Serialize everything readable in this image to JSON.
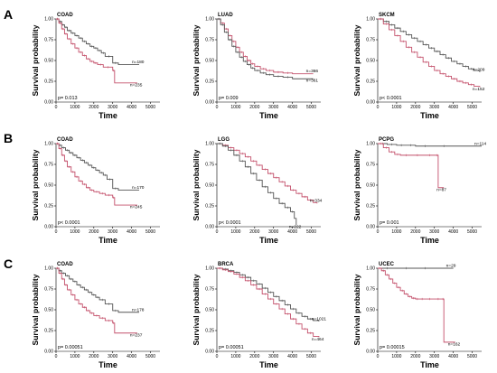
{
  "panel_letters": [
    "A",
    "B",
    "C"
  ],
  "chart_data": [
    {
      "type": "line",
      "row": 0,
      "col": 0,
      "title": "COAD",
      "xlabel": "Time",
      "ylabel": "Survival probability",
      "xlim": [
        0,
        5500
      ],
      "ylim": [
        0,
        1
      ],
      "xticks": [
        "0",
        "1000",
        "2000",
        "3000",
        "4000",
        "5000"
      ],
      "yticks": [
        "0.00",
        "0.25",
        "0.50",
        "0.75",
        "1.00"
      ],
      "p_value": "p= 0.013",
      "series": [
        {
          "name": "n=180",
          "color": "#555555",
          "x": [
            0,
            150,
            300,
            450,
            600,
            800,
            1000,
            1200,
            1400,
            1600,
            1800,
            2000,
            2200,
            2400,
            2600,
            3000,
            3300,
            4400
          ],
          "y": [
            1.0,
            0.97,
            0.93,
            0.9,
            0.86,
            0.83,
            0.8,
            0.77,
            0.73,
            0.7,
            0.67,
            0.65,
            0.62,
            0.59,
            0.55,
            0.47,
            0.45,
            0.45
          ]
        },
        {
          "name": "n=235",
          "color": "#c4506b",
          "x": [
            0,
            150,
            300,
            450,
            600,
            800,
            1000,
            1200,
            1400,
            1600,
            1800,
            2000,
            2200,
            2500,
            3000,
            3100,
            4300
          ],
          "y": [
            1.0,
            0.95,
            0.88,
            0.82,
            0.76,
            0.7,
            0.65,
            0.6,
            0.56,
            0.52,
            0.49,
            0.47,
            0.45,
            0.42,
            0.38,
            0.23,
            0.23
          ]
        }
      ]
    },
    {
      "type": "line",
      "row": 0,
      "col": 1,
      "title": "LUAD",
      "xlabel": "Time",
      "ylabel": "Survival probability",
      "xlim": [
        0,
        5500
      ],
      "ylim": [
        0,
        1
      ],
      "xticks": [
        "0",
        "1000",
        "2000",
        "3000",
        "4000",
        "5000"
      ],
      "yticks": [
        "0.00",
        "0.25",
        "0.50",
        "0.75",
        "1.00"
      ],
      "p_value": "p= 0.009",
      "series": [
        {
          "name": "n=366",
          "color": "#c4506b",
          "x": [
            0,
            200,
            400,
            600,
            800,
            1000,
            1200,
            1400,
            1600,
            1800,
            2000,
            2300,
            2600,
            3000,
            3500,
            4000,
            5100
          ],
          "y": [
            1.0,
            0.95,
            0.88,
            0.8,
            0.73,
            0.66,
            0.6,
            0.55,
            0.5,
            0.46,
            0.43,
            0.4,
            0.38,
            0.36,
            0.35,
            0.34,
            0.34
          ]
        },
        {
          "name": "n=361",
          "color": "#555555",
          "x": [
            0,
            200,
            400,
            600,
            800,
            1000,
            1200,
            1400,
            1600,
            1800,
            2000,
            2300,
            2600,
            3000,
            3500,
            4000,
            5100
          ],
          "y": [
            1.0,
            0.93,
            0.84,
            0.75,
            0.67,
            0.6,
            0.54,
            0.49,
            0.45,
            0.41,
            0.38,
            0.35,
            0.33,
            0.31,
            0.3,
            0.28,
            0.28
          ]
        }
      ]
    },
    {
      "type": "line",
      "row": 0,
      "col": 2,
      "title": "SKCM",
      "xlabel": "Time",
      "ylabel": "Survival probability",
      "xlim": [
        0,
        5500
      ],
      "ylim": [
        0,
        1
      ],
      "xticks": [
        "0",
        "1000",
        "2000",
        "3000",
        "4000",
        "5000"
      ],
      "yticks": [
        "0.00",
        "0.25",
        "0.50",
        "0.75",
        "1.00"
      ],
      "p_value": "p< 0.0001",
      "series": [
        {
          "name": "n=209",
          "color": "#555555",
          "x": [
            0,
            300,
            600,
            900,
            1200,
            1500,
            1800,
            2100,
            2400,
            2700,
            3000,
            3300,
            3600,
            3900,
            4200,
            4500,
            4800,
            5100,
            5400
          ],
          "y": [
            1.0,
            0.97,
            0.93,
            0.89,
            0.85,
            0.81,
            0.77,
            0.73,
            0.69,
            0.65,
            0.61,
            0.57,
            0.53,
            0.49,
            0.46,
            0.43,
            0.4,
            0.38,
            0.36
          ]
        },
        {
          "name": "n=152",
          "color": "#c4506b",
          "x": [
            0,
            300,
            600,
            900,
            1200,
            1500,
            1800,
            2100,
            2400,
            2700,
            3000,
            3300,
            3600,
            3900,
            4200,
            4500,
            4800,
            5100,
            5400
          ],
          "y": [
            1.0,
            0.94,
            0.87,
            0.8,
            0.73,
            0.66,
            0.6,
            0.54,
            0.48,
            0.43,
            0.38,
            0.34,
            0.31,
            0.28,
            0.25,
            0.23,
            0.21,
            0.19,
            0.18
          ]
        }
      ]
    },
    {
      "type": "line",
      "row": 1,
      "col": 0,
      "title": "COAD",
      "xlabel": "Time",
      "ylabel": "Survival probability",
      "xlim": [
        0,
        5500
      ],
      "ylim": [
        0,
        1
      ],
      "xticks": [
        "0",
        "1000",
        "2000",
        "3000",
        "4000",
        "5000"
      ],
      "yticks": [
        "0.00",
        "0.25",
        "0.50",
        "0.75",
        "1.00"
      ],
      "p_value": "p< 0.0001",
      "series": [
        {
          "name": "n=170",
          "color": "#555555",
          "x": [
            0,
            150,
            300,
            500,
            700,
            900,
            1100,
            1300,
            1500,
            1700,
            1900,
            2100,
            2300,
            2500,
            2700,
            3000,
            3300,
            4400
          ],
          "y": [
            1.0,
            0.98,
            0.95,
            0.92,
            0.89,
            0.86,
            0.83,
            0.8,
            0.77,
            0.74,
            0.71,
            0.68,
            0.65,
            0.62,
            0.57,
            0.46,
            0.44,
            0.44
          ]
        },
        {
          "name": "n=245",
          "color": "#c4506b",
          "x": [
            0,
            150,
            300,
            450,
            600,
            800,
            1000,
            1200,
            1400,
            1600,
            1800,
            2000,
            2300,
            2600,
            3000,
            3100,
            4300
          ],
          "y": [
            1.0,
            0.94,
            0.86,
            0.79,
            0.72,
            0.66,
            0.6,
            0.55,
            0.51,
            0.47,
            0.44,
            0.42,
            0.4,
            0.38,
            0.35,
            0.26,
            0.26
          ]
        }
      ]
    },
    {
      "type": "line",
      "row": 1,
      "col": 1,
      "title": "LGG",
      "xlabel": "Time",
      "ylabel": "Survival probability",
      "xlim": [
        0,
        5500
      ],
      "ylim": [
        0,
        1
      ],
      "xticks": [
        "0",
        "1000",
        "2000",
        "3000",
        "4000",
        "5000"
      ],
      "yticks": [
        "0.00",
        "0.25",
        "0.50",
        "0.75",
        "1.00"
      ],
      "p_value": "p< 0.0001",
      "series": [
        {
          "name": "n=334",
          "color": "#c4506b",
          "x": [
            0,
            300,
            600,
            900,
            1200,
            1500,
            1800,
            2100,
            2400,
            2700,
            3000,
            3300,
            3600,
            3900,
            4200,
            4500,
            4800,
            5100,
            5300
          ],
          "y": [
            1.0,
            0.98,
            0.95,
            0.92,
            0.88,
            0.84,
            0.79,
            0.74,
            0.69,
            0.64,
            0.59,
            0.54,
            0.49,
            0.44,
            0.4,
            0.36,
            0.32,
            0.29,
            0.28
          ]
        },
        {
          "name": "n=222",
          "color": "#555555",
          "x": [
            0,
            300,
            600,
            900,
            1200,
            1500,
            1800,
            2100,
            2400,
            2700,
            3000,
            3300,
            3600,
            3900,
            4100,
            4200
          ],
          "y": [
            1.0,
            0.97,
            0.92,
            0.86,
            0.79,
            0.72,
            0.64,
            0.56,
            0.48,
            0.41,
            0.34,
            0.28,
            0.23,
            0.18,
            0.1,
            0.02
          ]
        }
      ]
    },
    {
      "type": "line",
      "row": 1,
      "col": 2,
      "title": "PCPG",
      "xlabel": "Time",
      "ylabel": "Survival probability",
      "xlim": [
        0,
        5500
      ],
      "ylim": [
        0,
        1
      ],
      "xticks": [
        "0",
        "1000",
        "2000",
        "3000",
        "4000",
        "5000"
      ],
      "yticks": [
        "0.00",
        "0.25",
        "0.50",
        "0.75",
        "1.00"
      ],
      "p_value": "p= 0.001",
      "series": [
        {
          "name": "n=114",
          "color": "#555555",
          "x": [
            0,
            500,
            1000,
            1500,
            2000,
            3000,
            4000,
            5500
          ],
          "y": [
            1.0,
            0.99,
            0.98,
            0.98,
            0.97,
            0.97,
            0.97,
            0.97
          ]
        },
        {
          "name": "n=87",
          "color": "#c4506b",
          "x": [
            0,
            300,
            600,
            900,
            1200,
            1800,
            2400,
            3100,
            3200,
            3500
          ],
          "y": [
            1.0,
            0.95,
            0.9,
            0.87,
            0.86,
            0.86,
            0.86,
            0.86,
            0.47,
            0.47
          ]
        }
      ]
    },
    {
      "type": "line",
      "row": 2,
      "col": 0,
      "title": "COAD",
      "xlabel": "Time",
      "ylabel": "Survival probability",
      "xlim": [
        0,
        5500
      ],
      "ylim": [
        0,
        1
      ],
      "xticks": [
        "0",
        "1000",
        "2000",
        "3000",
        "4000",
        "5000"
      ],
      "yticks": [
        "0.00",
        "0.25",
        "0.50",
        "0.75",
        "1.00"
      ],
      "p_value": "p= 0.00051",
      "series": [
        {
          "name": "n=178",
          "color": "#555555",
          "x": [
            0,
            150,
            300,
            500,
            700,
            900,
            1100,
            1300,
            1500,
            1700,
            1900,
            2100,
            2300,
            2600,
            3000,
            3300,
            4400
          ],
          "y": [
            1.0,
            0.97,
            0.94,
            0.91,
            0.87,
            0.84,
            0.8,
            0.77,
            0.74,
            0.71,
            0.68,
            0.65,
            0.62,
            0.57,
            0.49,
            0.47,
            0.47
          ]
        },
        {
          "name": "n=237",
          "color": "#c4506b",
          "x": [
            0,
            150,
            300,
            450,
            600,
            800,
            1000,
            1200,
            1400,
            1600,
            1800,
            2000,
            2300,
            2600,
            3000,
            3100,
            4300
          ],
          "y": [
            1.0,
            0.94,
            0.87,
            0.8,
            0.74,
            0.68,
            0.62,
            0.57,
            0.53,
            0.49,
            0.46,
            0.43,
            0.4,
            0.37,
            0.34,
            0.22,
            0.22
          ]
        }
      ]
    },
    {
      "type": "line",
      "row": 2,
      "col": 1,
      "title": "BRCA",
      "xlabel": "Time",
      "ylabel": "Survival probability",
      "xlim": [
        0,
        5500
      ],
      "ylim": [
        0,
        1
      ],
      "xticks": [
        "0",
        "1000",
        "2000",
        "3000",
        "4000",
        "5000"
      ],
      "yticks": [
        "0.00",
        "0.25",
        "0.50",
        "0.75",
        "1.00"
      ],
      "p_value": "p= 0.00051",
      "series": [
        {
          "name": "n=1021",
          "color": "#555555",
          "x": [
            0,
            300,
            600,
            900,
            1200,
            1500,
            1800,
            2100,
            2400,
            2700,
            3000,
            3300,
            3600,
            3900,
            4200,
            4500,
            4800,
            5100,
            5400
          ],
          "y": [
            1.0,
            0.99,
            0.97,
            0.95,
            0.92,
            0.89,
            0.85,
            0.81,
            0.76,
            0.71,
            0.66,
            0.61,
            0.56,
            0.51,
            0.46,
            0.42,
            0.39,
            0.37,
            0.36
          ]
        },
        {
          "name": "n=464",
          "color": "#c4506b",
          "x": [
            0,
            300,
            600,
            900,
            1200,
            1500,
            1800,
            2100,
            2400,
            2700,
            3000,
            3300,
            3600,
            3900,
            4200,
            4500,
            4800,
            5100,
            5400
          ],
          "y": [
            1.0,
            0.98,
            0.96,
            0.93,
            0.89,
            0.85,
            0.8,
            0.75,
            0.69,
            0.63,
            0.57,
            0.51,
            0.45,
            0.39,
            0.33,
            0.27,
            0.22,
            0.18,
            0.17
          ]
        }
      ]
    },
    {
      "type": "line",
      "row": 2,
      "col": 2,
      "title": "UCEC",
      "xlabel": "Time",
      "ylabel": "Survival probability",
      "xlim": [
        0,
        5500
      ],
      "ylim": [
        0,
        1
      ],
      "xticks": [
        "0",
        "1000",
        "2000",
        "3000",
        "4000",
        "5000"
      ],
      "yticks": [
        "0.00",
        "0.25",
        "0.50",
        "0.75",
        "1.00"
      ],
      "p_value": "p= 0.00015",
      "series": [
        {
          "name": "n=29",
          "color": "#555555",
          "x": [
            0,
            1000,
            2000,
            3000,
            4000
          ],
          "y": [
            1.0,
            1.0,
            1.0,
            1.0,
            1.0
          ]
        },
        {
          "name": "n=162",
          "color": "#c4506b",
          "x": [
            0,
            200,
            400,
            600,
            800,
            1000,
            1200,
            1400,
            1600,
            1800,
            2000,
            2200,
            2500,
            3000,
            3400,
            3500,
            4100
          ],
          "y": [
            1.0,
            0.97,
            0.92,
            0.87,
            0.82,
            0.77,
            0.73,
            0.69,
            0.66,
            0.64,
            0.63,
            0.63,
            0.63,
            0.63,
            0.63,
            0.11,
            0.11
          ]
        }
      ]
    }
  ]
}
